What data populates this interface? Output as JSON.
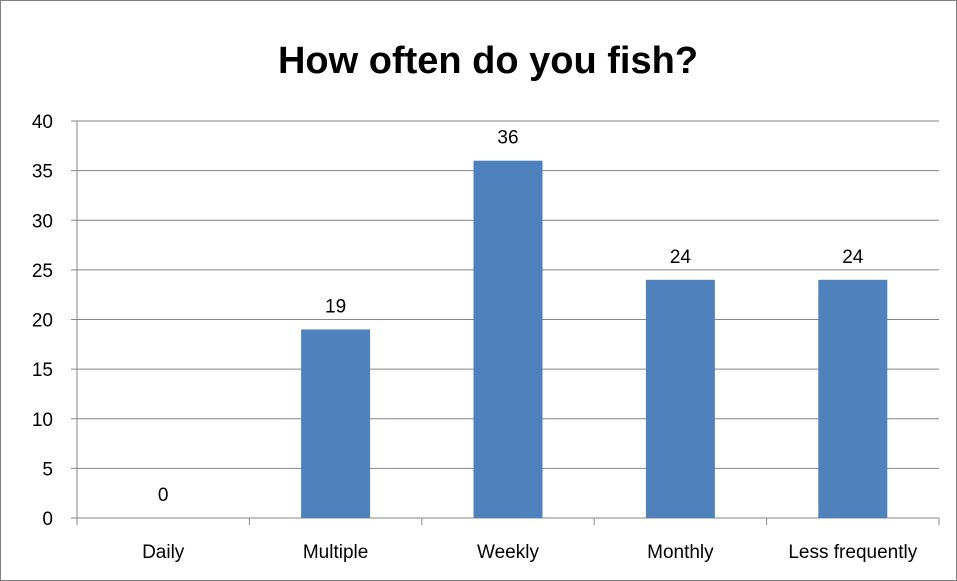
{
  "chart_data": {
    "type": "bar",
    "title": "How often do you fish?",
    "categories": [
      "Daily",
      "Multiple",
      "Weekly",
      "Monthly",
      "Less frequently"
    ],
    "values": [
      0,
      19,
      36,
      24,
      24
    ],
    "data_labels": [
      "0",
      "19",
      "36",
      "24",
      "24"
    ],
    "ylim": [
      0,
      40
    ],
    "yticks": [
      0,
      5,
      10,
      15,
      20,
      25,
      30,
      35,
      40
    ],
    "grid": true,
    "legend": "none",
    "colors": {
      "bar": "#4f81bd",
      "grid": "#868686",
      "axis": "#868686"
    }
  }
}
